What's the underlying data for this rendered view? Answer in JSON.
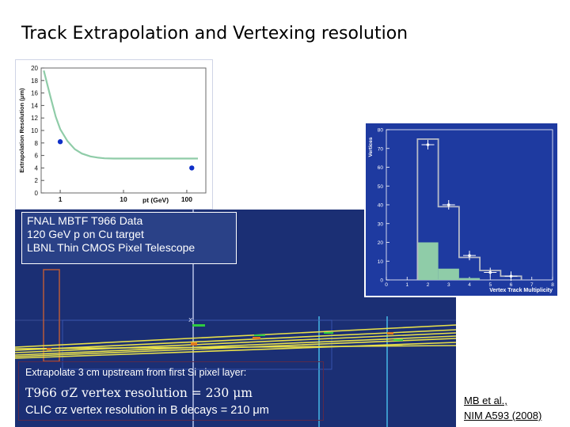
{
  "title": "Track Extrapolation and Vertexing resolution",
  "info_box": {
    "line1": "FNAL MBTF T966 Data",
    "line2": "120 GeV p on Cu target",
    "line3": "LBNL Thin CMOS Pixel Telescope"
  },
  "caption": {
    "line1": "Extrapolate 3 cm upstream from first Si pixel layer:",
    "line2": "T966 σZ vertex resolution = 230 μm",
    "line3": "CLIC σz vertex resolution in B decays = 210 μm"
  },
  "reference": {
    "line1": "MB et al.,",
    "line2": "NIM A593 (2008)"
  },
  "colors": {
    "event_background": "#1b2f74",
    "track": "#e8e04a",
    "curve": "#8fcca8",
    "hist_fill": "#8fcca8",
    "plot_background": "#1e3aa0"
  },
  "chart_data": [
    {
      "type": "line",
      "ylabel": "Extrapolation Resolution (μm)",
      "xlabel": "pt (GeV)",
      "x_scale": "log",
      "x_ticks": [
        "1",
        "10",
        "100"
      ],
      "y_ticks": [
        "0",
        "2",
        "4",
        "6",
        "8",
        "10",
        "12",
        "14",
        "16",
        "18",
        "20"
      ],
      "ylim": [
        0,
        20
      ],
      "xlim": [
        0.5,
        200
      ],
      "curve": {
        "x": [
          0.55,
          0.7,
          0.85,
          1,
          1.3,
          1.7,
          2.2,
          3,
          4,
          5,
          7,
          10,
          20,
          50,
          150
        ],
        "y": [
          19.6,
          15.4,
          12.2,
          10.2,
          8.3,
          7.0,
          6.3,
          5.85,
          5.65,
          5.55,
          5.5,
          5.5,
          5.5,
          5.5,
          5.5
        ]
      },
      "points": [
        {
          "x": 1.0,
          "y": 8.2
        },
        {
          "x": 120,
          "y": 4.0
        }
      ]
    },
    {
      "type": "bar",
      "ylabel": "Vertices",
      "xlabel": "Vertex Track Multiplicity",
      "x_ticks": [
        "0",
        "1",
        "2",
        "3",
        "4",
        "5",
        "6",
        "7",
        "8"
      ],
      "y_ticks": [
        "0",
        "10",
        "20",
        "30",
        "40",
        "50",
        "60",
        "70",
        "80"
      ],
      "ylim": [
        0,
        80
      ],
      "xlim": [
        0,
        8
      ],
      "series": [
        {
          "x": [
            2,
            3,
            4,
            5,
            6
          ],
          "values": [
            72,
            40,
            13,
            4,
            2
          ]
        },
        {
          "x": [
            2,
            3,
            4,
            5,
            6
          ],
          "values": [
            75,
            39,
            12,
            5,
            2
          ]
        },
        {
          "x": [
            2,
            3,
            4,
            5,
            6
          ],
          "values": [
            20,
            6,
            1,
            0,
            0
          ]
        }
      ]
    }
  ]
}
